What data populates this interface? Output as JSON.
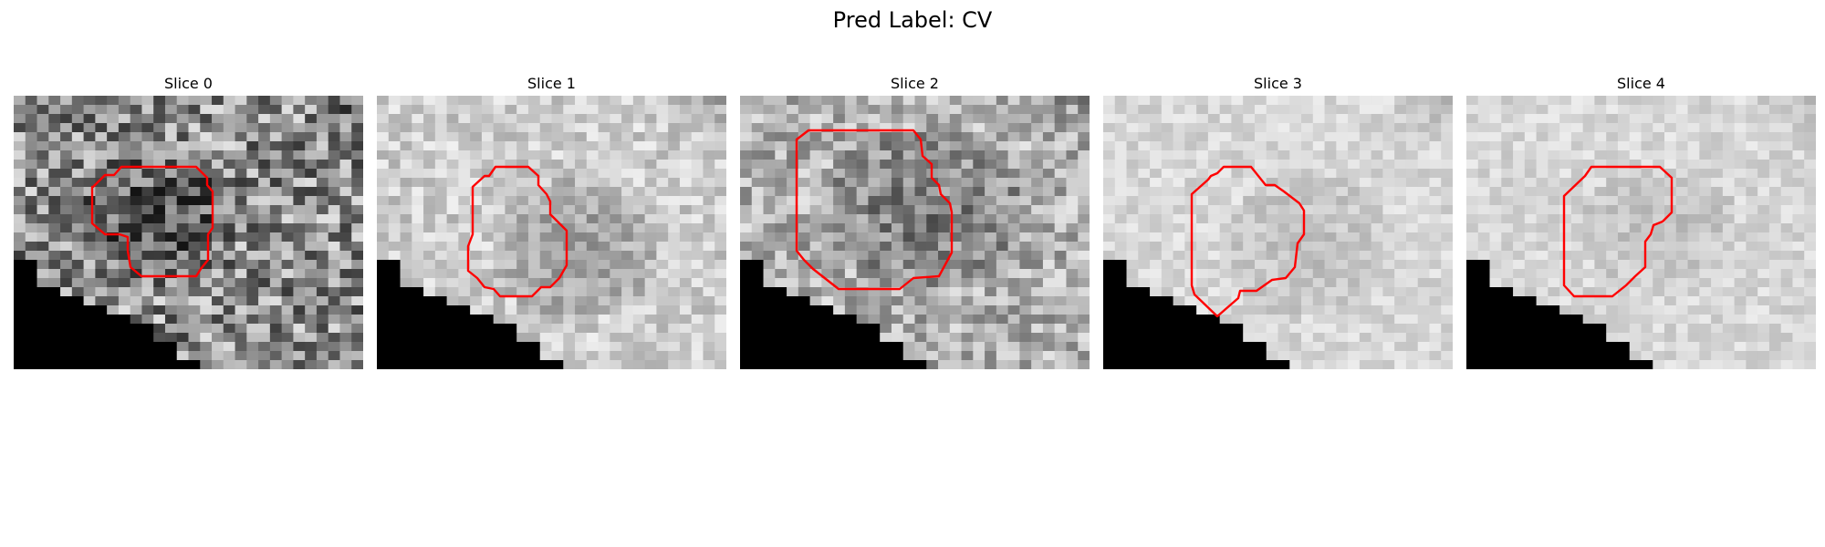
{
  "figure": {
    "title": "Pred Label: CV"
  },
  "panels": [
    {
      "title": "Slice 0",
      "shade": "dark"
    },
    {
      "title": "Slice 1",
      "shade": "medium"
    },
    {
      "title": "Slice 2",
      "shade": "medium-dark"
    },
    {
      "title": "Slice 3",
      "shade": "light"
    },
    {
      "title": "Slice 4",
      "shade": "light"
    }
  ],
  "colors": {
    "contour": "#ff0000",
    "masked_region": "#000000"
  }
}
